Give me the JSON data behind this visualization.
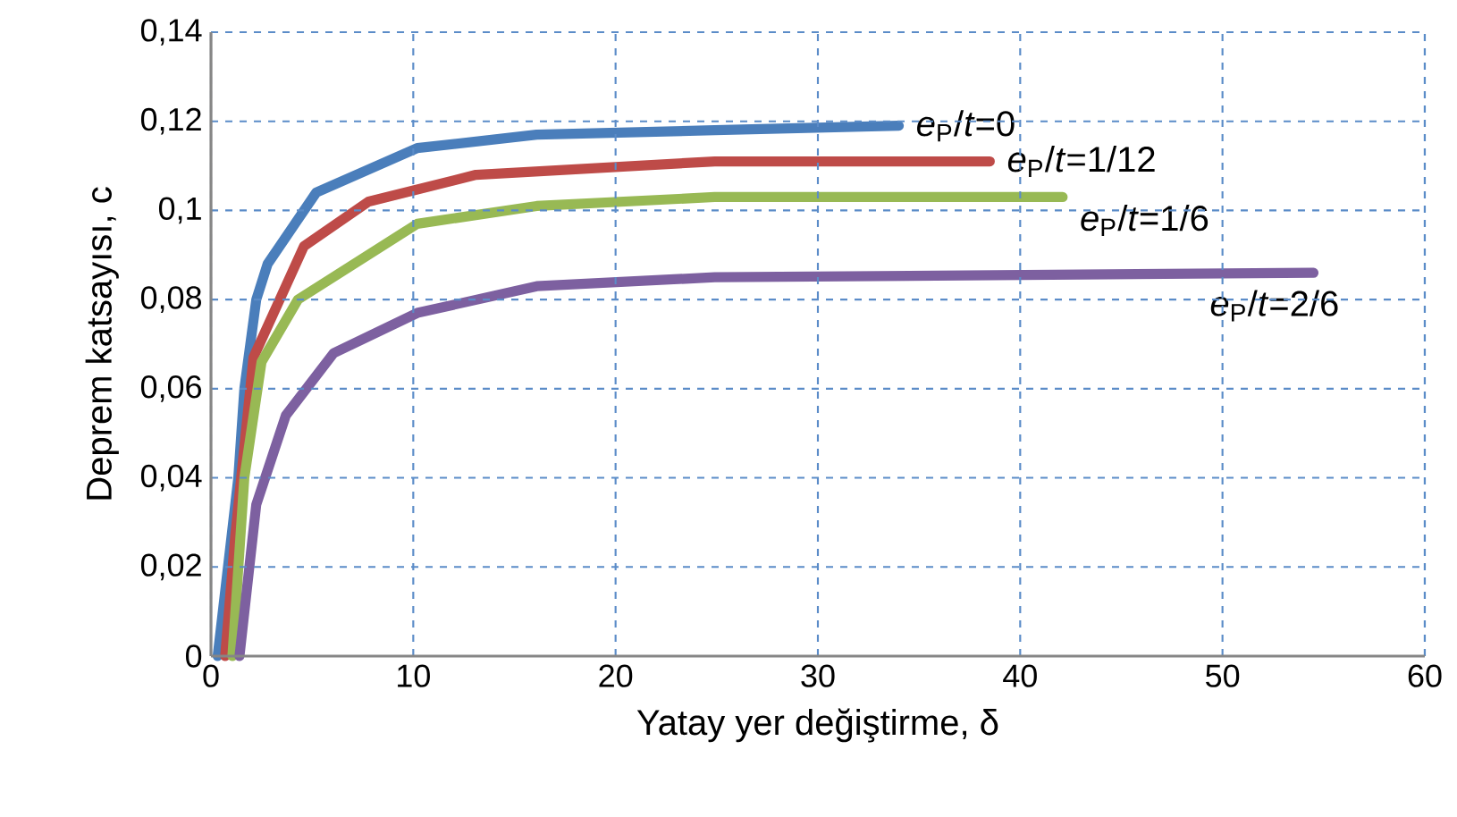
{
  "chart_data": {
    "type": "line",
    "xlabel": "Yatay yer değiştirme, δ",
    "ylabel": "Deprem katsayısı, c",
    "xlim": [
      0,
      60
    ],
    "xticks": [
      0,
      10,
      20,
      30,
      40,
      50,
      60
    ],
    "ylim": [
      0,
      0.14
    ],
    "yticks": [
      {
        "value": 0,
        "label": "0"
      },
      {
        "value": 0.02,
        "label": "0,02"
      },
      {
        "value": 0.04,
        "label": "0,04"
      },
      {
        "value": 0.06,
        "label": "0,06"
      },
      {
        "value": 0.08,
        "label": "0,08"
      },
      {
        "value": 0.1,
        "label": "0,1"
      },
      {
        "value": 0.12,
        "label": "0,12"
      },
      {
        "value": 0.14,
        "label": "0,14"
      }
    ],
    "grid": true,
    "line_style": "solid",
    "marker": "none",
    "series": [
      {
        "name": "*e*$_{P}$/*t*=0",
        "color": "#4a7ebb",
        "x": [
          0.33,
          1.35,
          1.65,
          2.24,
          2.8,
          5.2,
          10.2,
          16.1,
          24.9,
          34.0
        ],
        "values": [
          0,
          0.04,
          0.06,
          0.08,
          0.088,
          0.104,
          0.114,
          0.117,
          0.118,
          0.119
        ]
      },
      {
        "name": "*e*$_{P}$/*t*=1/12",
        "color": "#be4b48",
        "x": [
          0.7,
          1.2,
          2.1,
          4.6,
          7.8,
          13.1,
          24.9,
          38.5
        ],
        "values": [
          0,
          0.027,
          0.067,
          0.092,
          0.102,
          0.108,
          0.111,
          0.111
        ]
      },
      {
        "name": "*e*$_{P}$/*t*=1/6",
        "color": "#98b954",
        "x": [
          1.06,
          1.65,
          2.5,
          4.3,
          10.2,
          16.1,
          24.9,
          42.1
        ],
        "values": [
          0,
          0.04,
          0.066,
          0.08,
          0.097,
          0.101,
          0.103,
          0.103
        ]
      },
      {
        "name": "*e*$_{P}$/*t*=2/6",
        "color": "#7d60a0",
        "x": [
          1.41,
          2.24,
          3.7,
          6.07,
          10.2,
          16.1,
          24.9,
          54.5
        ],
        "values": [
          0,
          0.034,
          0.054,
          0.068,
          0.077,
          0.083,
          0.085,
          0.086
        ]
      }
    ]
  }
}
